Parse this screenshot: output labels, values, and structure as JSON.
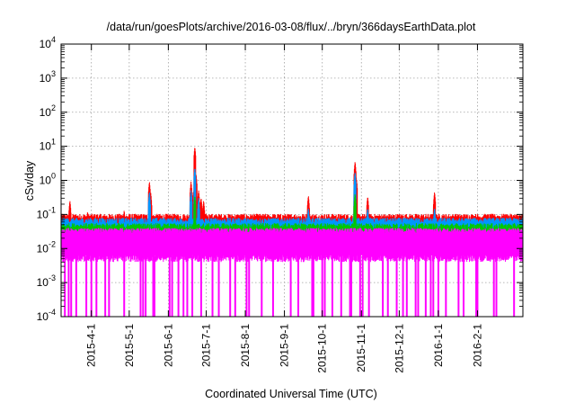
{
  "chart_data": {
    "type": "line",
    "title": "/data/run/goesPlots/archive/2016-03-08/flux/../bryn/366daysEarthData.plot",
    "xlabel": "Coordinated Universal Time (UTC)",
    "ylabel": "cSv/day",
    "yscale": "log",
    "ylim": [
      0.0001,
      10000
    ],
    "xlim": [
      "2015-03-08",
      "2016-03-08"
    ],
    "grid": true,
    "legend": "none",
    "y_ticks": [
      {
        "exp": "-4",
        "value": 0.0001
      },
      {
        "exp": "-3",
        "value": 0.001
      },
      {
        "exp": "-2",
        "value": 0.01
      },
      {
        "exp": "-1",
        "value": 0.1
      },
      {
        "exp": "0",
        "value": 1
      },
      {
        "exp": "1",
        "value": 10
      },
      {
        "exp": "2",
        "value": 100
      },
      {
        "exp": "3",
        "value": 1000
      },
      {
        "exp": "4",
        "value": 10000
      }
    ],
    "y_tick_base": "10",
    "x_ticks": [
      {
        "label": "2015-4-1",
        "date": "2015-04-01"
      },
      {
        "label": "2015-5-1",
        "date": "2015-05-01"
      },
      {
        "label": "2015-6-1",
        "date": "2015-06-01"
      },
      {
        "label": "2015-7-1",
        "date": "2015-07-01"
      },
      {
        "label": "2015-8-1",
        "date": "2015-08-01"
      },
      {
        "label": "2015-9-1",
        "date": "2015-09-01"
      },
      {
        "label": "2015-10-1",
        "date": "2015-10-01"
      },
      {
        "label": "2015-11-1",
        "date": "2015-11-01"
      },
      {
        "label": "2015-12-1",
        "date": "2015-12-01"
      },
      {
        "label": "2016-1-1",
        "date": "2016-01-01"
      },
      {
        "label": "2016-2-1",
        "date": "2016-02-01"
      }
    ],
    "series": [
      {
        "color": "#ff0000",
        "baseline": 0.085,
        "spikes": [
          {
            "x": "2015-03-15",
            "y": 0.25
          },
          {
            "x": "2015-03-29",
            "y": 0.12
          },
          {
            "x": "2015-04-27",
            "y": 0.13
          },
          {
            "x": "2015-05-17",
            "y": 0.9
          },
          {
            "x": "2015-05-18",
            "y": 0.45
          },
          {
            "x": "2015-06-19",
            "y": 0.9
          },
          {
            "x": "2015-06-21",
            "y": 0.5
          },
          {
            "x": "2015-06-22",
            "y": 9.5
          },
          {
            "x": "2015-06-23",
            "y": 1.5
          },
          {
            "x": "2015-06-25",
            "y": 0.5
          },
          {
            "x": "2015-06-27",
            "y": 0.3
          },
          {
            "x": "2015-06-29",
            "y": 0.25
          },
          {
            "x": "2015-09-20",
            "y": 0.35
          },
          {
            "x": "2015-10-27",
            "y": 3.5
          },
          {
            "x": "2015-10-28",
            "y": 1.2
          },
          {
            "x": "2015-11-06",
            "y": 0.33
          },
          {
            "x": "2015-12-29",
            "y": 0.45
          }
        ]
      },
      {
        "color": "#0096ff",
        "baseline": 0.065,
        "spikes": [
          {
            "x": "2015-05-17",
            "y": 0.45
          },
          {
            "x": "2015-06-19",
            "y": 0.5
          },
          {
            "x": "2015-06-22",
            "y": 2.3
          },
          {
            "x": "2015-06-25",
            "y": 0.3
          },
          {
            "x": "2015-09-20",
            "y": 0.15
          },
          {
            "x": "2015-10-27",
            "y": 1.7
          },
          {
            "x": "2015-11-06",
            "y": 0.15
          },
          {
            "x": "2015-12-29",
            "y": 0.15
          }
        ]
      },
      {
        "color": "#00c800",
        "baseline": 0.045,
        "spikes": [
          {
            "x": "2015-06-22",
            "y": 0.35
          },
          {
            "x": "2015-10-27",
            "y": 0.4
          }
        ]
      },
      {
        "color": "#ff00ff",
        "baseline": 0.035,
        "floor": 0.005,
        "dropouts": [
          "2015-03-11",
          "2015-03-14",
          "2015-03-16",
          "2015-03-20",
          "2015-03-28",
          "2015-04-01",
          "2015-04-05",
          "2015-04-12",
          "2015-04-15",
          "2015-04-27",
          "2015-05-10",
          "2015-05-12",
          "2015-05-14",
          "2015-05-20",
          "2015-05-21",
          "2015-06-02",
          "2015-06-04",
          "2015-06-09",
          "2015-06-13",
          "2015-06-16",
          "2015-06-20",
          "2015-06-27",
          "2015-07-06",
          "2015-07-11",
          "2015-07-20",
          "2015-07-24",
          "2015-08-02",
          "2015-08-04",
          "2015-08-14",
          "2015-08-23",
          "2015-09-06",
          "2015-09-12",
          "2015-09-23",
          "2015-09-24",
          "2015-10-01",
          "2015-10-03",
          "2015-10-09",
          "2015-10-16",
          "2015-10-23",
          "2015-10-24",
          "2015-10-31",
          "2015-11-02",
          "2015-11-07",
          "2015-11-18",
          "2015-11-22",
          "2015-11-29",
          "2015-12-04",
          "2015-12-07",
          "2015-12-14",
          "2015-12-16",
          "2015-12-22",
          "2015-12-26",
          "2015-12-28",
          "2016-01-01",
          "2016-01-07",
          "2016-01-17",
          "2016-01-21",
          "2016-01-31",
          "2016-02-01",
          "2016-02-14",
          "2016-02-16",
          "2016-03-01"
        ]
      }
    ]
  }
}
